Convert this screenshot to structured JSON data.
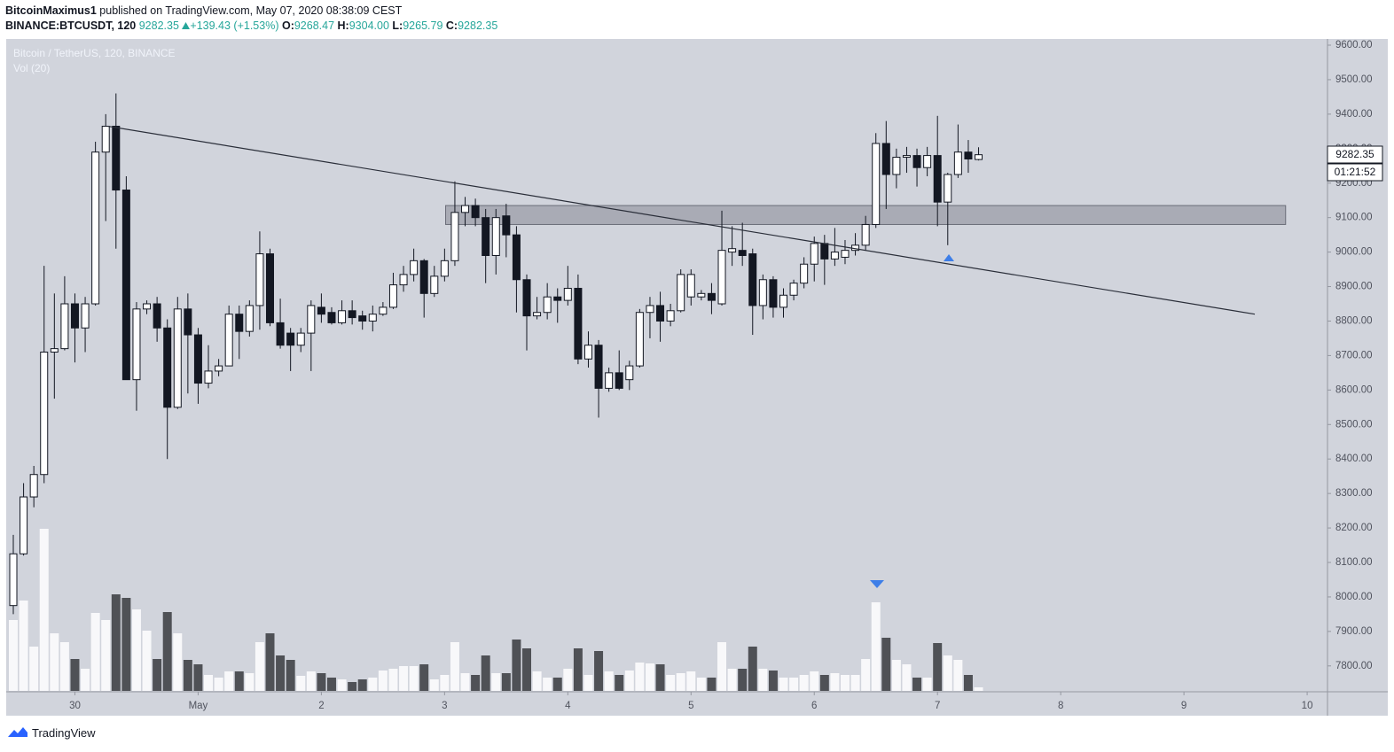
{
  "header": {
    "author": "BitcoinMaximus1",
    "published": "published on TradingView.com, May 07, 2020 08:38:09 CEST",
    "symbol": "BINANCE:BTCUSDT, 120",
    "last": "9282.35",
    "change": "+139.43 (+1.53%)",
    "ohlc": [
      {
        "label": "O:",
        "value": "9268.47"
      },
      {
        "label": "H:",
        "value": "9304.00"
      },
      {
        "label": "L:",
        "value": "9265.79"
      },
      {
        "label": "C:",
        "value": "9282.35"
      }
    ]
  },
  "chart_data": {
    "type": "candlestick",
    "title": "Bitcoin / TetherUS, 120, BINANCE",
    "volume_label": "Vol (20)",
    "categories": [
      "30",
      "May",
      "2",
      "3",
      "4",
      "5",
      "6",
      "7",
      "8",
      "9",
      "10"
    ],
    "open": [
      7975,
      8125,
      8290,
      8355,
      8710,
      8720,
      8850,
      8780,
      8850,
      9290,
      9365,
      9180,
      8630,
      8835,
      8850,
      8780,
      8550,
      8835,
      8760,
      8620,
      8655,
      8670,
      8820,
      8770,
      8845,
      8995,
      8795,
      8765,
      8730,
      8765,
      8840,
      8825,
      8795,
      8830,
      8815,
      8800,
      8820,
      8840,
      8905,
      8935,
      8975,
      8880,
      8930,
      8975,
      9115,
      9135,
      9100,
      8990,
      9105,
      9050,
      8920,
      8815,
      8825,
      8870,
      8860,
      8895,
      8690,
      8730,
      8605,
      8650,
      8630,
      8670,
      8825,
      8845,
      8800,
      8830,
      8870,
      8870,
      8880,
      8850,
      9000,
      9005,
      8995,
      8845,
      8920,
      8840,
      8875,
      8910,
      8965,
      9025,
      8980,
      8985,
      9005,
      9020,
      9080,
      9315,
      9225,
      9275,
      9280,
      9245,
      9280,
      9145,
      9225,
      9290,
      9268.47
    ],
    "high": [
      8180,
      8330,
      8380,
      8960,
      8880,
      8930,
      8880,
      8870,
      9320,
      9400,
      9460,
      9220,
      8855,
      8860,
      8870,
      8805,
      8870,
      8880,
      8780,
      8730,
      8690,
      8845,
      8845,
      8860,
      9060,
      9010,
      8865,
      8780,
      8780,
      8860,
      8880,
      8840,
      8860,
      8860,
      8830,
      8845,
      8855,
      8940,
      8960,
      9010,
      8980,
      8960,
      9010,
      9205,
      9160,
      9155,
      9125,
      9125,
      9140,
      9075,
      8935,
      8870,
      8910,
      8895,
      8960,
      8935,
      8770,
      8745,
      8665,
      8715,
      8685,
      8835,
      8870,
      8885,
      8850,
      8950,
      8950,
      8890,
      8910,
      9120,
      9075,
      9085,
      9010,
      8935,
      8930,
      8895,
      8920,
      8985,
      9045,
      9050,
      9070,
      9035,
      9055,
      9105,
      9345,
      9380,
      9300,
      9305,
      9300,
      9305,
      9395,
      9230,
      9370,
      9325,
      9304.0
    ],
    "low": [
      7950,
      8120,
      8260,
      8330,
      8575,
      8715,
      8680,
      8710,
      8845,
      9090,
      9010,
      8630,
      8540,
      8820,
      8740,
      8400,
      8545,
      8590,
      8560,
      8605,
      8640,
      8670,
      8690,
      8755,
      8775,
      8785,
      8720,
      8655,
      8710,
      8655,
      8795,
      8790,
      8790,
      8790,
      8775,
      8770,
      8815,
      8835,
      8885,
      8915,
      8810,
      8870,
      8915,
      8960,
      9075,
      9075,
      8910,
      8935,
      8985,
      8825,
      8715,
      8805,
      8805,
      8795,
      8845,
      8675,
      8665,
      8520,
      8595,
      8600,
      8600,
      8665,
      8750,
      8740,
      8785,
      8825,
      8845,
      8860,
      8820,
      8845,
      8960,
      8960,
      8760,
      8805,
      8810,
      8810,
      8860,
      8895,
      8915,
      8905,
      8960,
      8965,
      8990,
      9005,
      9070,
      9125,
      9185,
      9230,
      9190,
      9220,
      9075,
      9020,
      9215,
      9230,
      9265.79
    ],
    "close": [
      8125,
      8290,
      8355,
      8710,
      8720,
      8850,
      8780,
      8850,
      9290,
      9365,
      9180,
      8630,
      8835,
      8850,
      8780,
      8550,
      8835,
      8760,
      8620,
      8655,
      8670,
      8820,
      8770,
      8845,
      8995,
      8795,
      8730,
      8730,
      8765,
      8845,
      8820,
      8795,
      8830,
      8810,
      8800,
      8820,
      8840,
      8905,
      8935,
      8975,
      8880,
      8930,
      8975,
      9115,
      9135,
      9100,
      8990,
      9100,
      9050,
      8920,
      8815,
      8825,
      8870,
      8860,
      8895,
      8690,
      8730,
      8605,
      8650,
      8605,
      8670,
      8825,
      8845,
      8800,
      8830,
      8935,
      8935,
      8880,
      8860,
      9005,
      9010,
      8990,
      8845,
      8920,
      8840,
      8875,
      8910,
      8965,
      9025,
      8980,
      9000,
      9005,
      9020,
      9080,
      9315,
      9225,
      9275,
      9280,
      9245,
      9280,
      9145,
      9225,
      9290,
      9270,
      9282.35
    ],
    "volume": [
      80,
      102,
      50,
      183,
      65,
      55,
      36,
      25,
      88,
      80,
      109,
      105,
      92,
      68,
      36,
      89,
      65,
      35,
      30,
      18,
      15,
      22,
      22,
      20,
      55,
      65,
      40,
      35,
      17,
      22,
      20,
      15,
      13,
      10,
      13,
      15,
      23,
      25,
      28,
      28,
      30,
      13,
      18,
      55,
      20,
      18,
      40,
      20,
      20,
      58,
      48,
      22,
      15,
      15,
      25,
      48,
      18,
      45,
      22,
      18,
      23,
      32,
      31,
      30,
      18,
      20,
      22,
      15,
      15,
      55,
      25,
      25,
      50,
      25,
      23,
      15,
      15,
      18,
      22,
      18,
      20,
      18,
      18,
      36,
      100,
      60,
      35,
      30,
      15,
      15,
      54,
      40,
      35,
      18,
      4
    ],
    "ylim": [
      7725,
      9618
    ],
    "yticks": [
      {
        "value": 7800,
        "label": "7800.00"
      },
      {
        "value": 7900,
        "label": "7900.00"
      },
      {
        "value": 8000,
        "label": "8000.00"
      },
      {
        "value": 8100,
        "label": "8100.00"
      },
      {
        "value": 8200,
        "label": "8200.00"
      },
      {
        "value": 8300,
        "label": "8300.00"
      },
      {
        "value": 8400,
        "label": "8400.00"
      },
      {
        "value": 8500,
        "label": "8500.00"
      },
      {
        "value": 8600,
        "label": "8600.00"
      },
      {
        "value": 8700,
        "label": "8700.00"
      },
      {
        "value": 8800,
        "label": "8800.00"
      },
      {
        "value": 8900,
        "label": "8900.00"
      },
      {
        "value": 9000,
        "label": "9000.00"
      },
      {
        "value": 9100,
        "label": "9100.00"
      },
      {
        "value": 9200,
        "label": "9200.00"
      },
      {
        "value": 9300,
        "label": "9300.00"
      },
      {
        "value": 9400,
        "label": "9400.00"
      },
      {
        "value": 9500,
        "label": "9500.00"
      },
      {
        "value": 9600,
        "label": "9600.00"
      }
    ],
    "zone": [
      9080,
      9135
    ],
    "trendline": [
      9365,
      8820
    ],
    "price_tag": "9282.35",
    "countdown": "01:21:52"
  },
  "footer": {
    "brand": "TradingView"
  }
}
